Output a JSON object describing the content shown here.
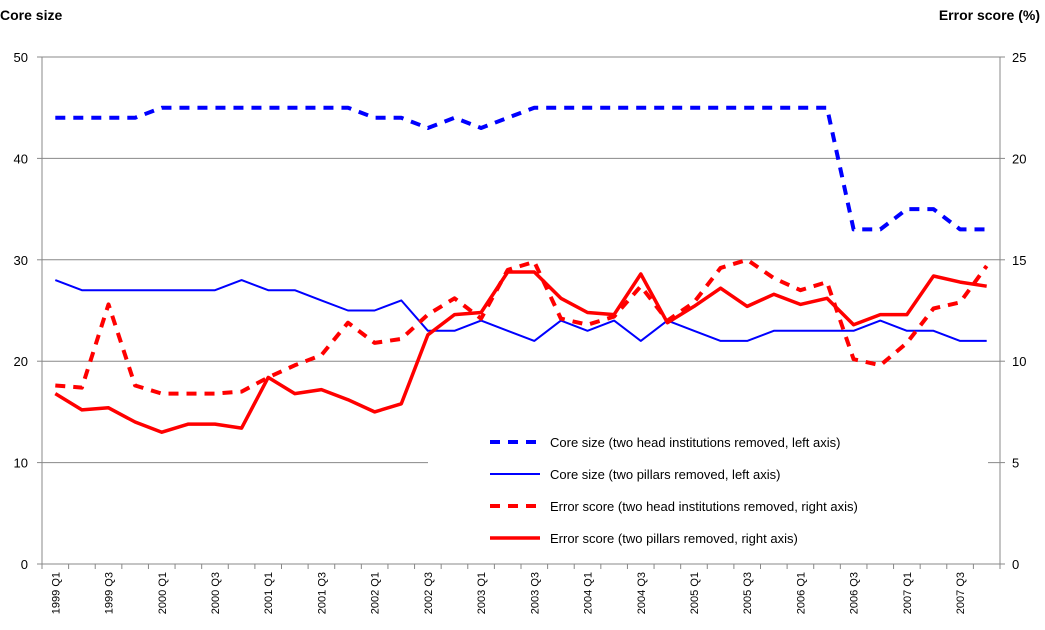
{
  "chart_data": {
    "type": "line",
    "y_label": "Core size",
    "y2_label": "Error score (%)",
    "categories": [
      "1999 Q1",
      null,
      "1999 Q3",
      null,
      "2000 Q1",
      null,
      "2000 Q3",
      null,
      "2001 Q1",
      null,
      "2001 Q3",
      null,
      "2002 Q1",
      null,
      "2002 Q3",
      null,
      "2003 Q1",
      null,
      "2003 Q3",
      null,
      "2004 Q1",
      null,
      "2004 Q3",
      null,
      "2005 Q1",
      null,
      "2005 Q3",
      null,
      "2006 Q1",
      null,
      "2006 Q3",
      null,
      "2007 Q1",
      null,
      "2007 Q3",
      null
    ],
    "ylim": [
      0,
      50
    ],
    "yticks": [
      0,
      10,
      20,
      30,
      40,
      50
    ],
    "y2lim": [
      0,
      25
    ],
    "y2ticks": [
      0,
      5,
      10,
      15,
      20,
      25
    ],
    "grid": true,
    "legend": "lower right",
    "series": [
      {
        "name": "Core size (two head institutions removed, left axis)",
        "color": "#0000ff",
        "dashed": true,
        "axis": "y",
        "values": [
          44,
          44,
          44,
          44,
          45,
          45,
          45,
          45,
          45,
          45,
          45,
          45,
          44,
          44,
          43,
          44,
          43,
          44,
          45,
          45,
          45,
          45,
          45,
          45,
          45,
          45,
          45,
          45,
          45,
          45,
          33,
          33,
          35,
          35,
          33,
          33
        ]
      },
      {
        "name": "Core size (two pillars removed, left axis)",
        "color": "#0000ff",
        "dashed": false,
        "axis": "y",
        "values": [
          28,
          27,
          27,
          27,
          27,
          27,
          27,
          28,
          27,
          27,
          26,
          25,
          25,
          26,
          23,
          23,
          24,
          23,
          22,
          24,
          23,
          24,
          22,
          24,
          23,
          22,
          22,
          23,
          23,
          23,
          23,
          24,
          23,
          23,
          22,
          22
        ]
      },
      {
        "name": "Error score (two head institutions removed, right axis)",
        "color": "#ff0000",
        "dashed": true,
        "axis": "y2",
        "values": [
          8.8,
          8.7,
          12.8,
          8.8,
          8.4,
          8.4,
          8.4,
          8.5,
          9.2,
          9.8,
          10.3,
          11.9,
          10.9,
          11.1,
          12.3,
          13.1,
          12.1,
          14.5,
          14.9,
          12.1,
          11.8,
          12.2,
          13.7,
          12.0,
          12.9,
          14.6,
          15.0,
          14.1,
          13.5,
          13.9,
          10.1,
          9.8,
          10.9,
          12.6,
          12.9,
          14.7
        ]
      },
      {
        "name": "Error score (two pillars removed, right axis)",
        "color": "#ff0000",
        "dashed": false,
        "axis": "y2",
        "values": [
          8.4,
          7.6,
          7.7,
          7.0,
          6.5,
          6.9,
          6.9,
          6.7,
          9.2,
          8.4,
          8.6,
          8.1,
          7.5,
          7.9,
          11.3,
          12.3,
          12.4,
          14.4,
          14.4,
          13.1,
          12.4,
          12.3,
          14.3,
          11.9,
          12.7,
          13.6,
          12.7,
          13.3,
          12.8,
          13.1,
          11.8,
          12.3,
          12.3,
          14.2,
          13.9,
          13.7
        ]
      }
    ]
  }
}
